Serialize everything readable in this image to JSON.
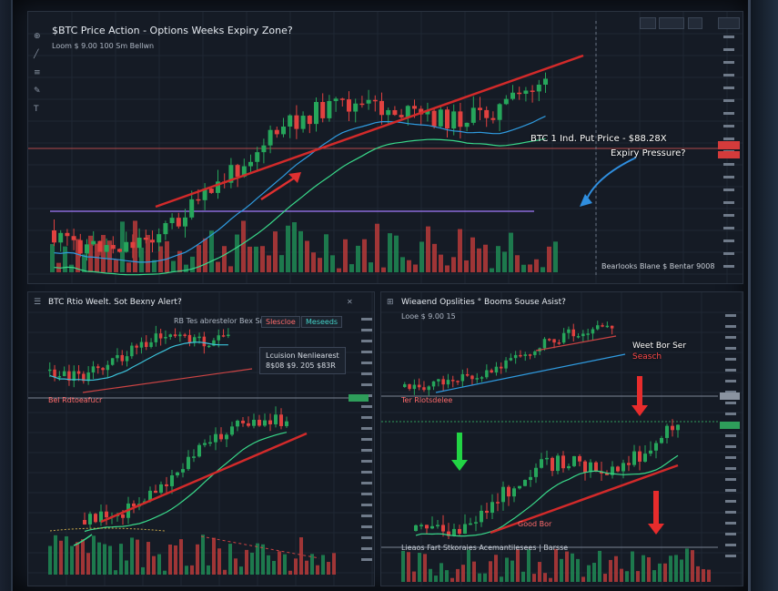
{
  "main_chart": {
    "title": "$BTC Price Action - Options Weeks Expiry Zone?",
    "subtitle": "Loom $ 9.00 100   Sm Bellwn",
    "annotation_line1": "BTC 1 Ind. Put Price - $88.28X",
    "annotation_line2": "Expiry Pressure?",
    "volume_label": "Bearlooks Blane   $ Bentar 9008",
    "toolbar": [
      "",
      "",
      "",
      ""
    ]
  },
  "left_chart": {
    "title": "BTC Rtio Weelt. Sot Bexny Alert?",
    "subtitle": "RB Tes abrestelor Bex Sn",
    "ticker": "Slescloe",
    "ticker2": "Meseeds",
    "info_line1": "Lcuision Nenliearest",
    "info_line2": "8$08 $9. 205 $83R",
    "mid_label": "Bel Rdtoeafucr"
  },
  "right_chart": {
    "title": "Wieaend Opslities ° Booms Souse Asist?",
    "subtitle": "Looe  $ 9.00  15",
    "annot_line1": "Weet Bor Ser",
    "annot_line2": "Seasch",
    "mid_label": "Ter Rlotsdelee",
    "bottom_label": "Good Bor",
    "volume_label": "Lieaos Fart Stkoraies Acemantilesees | Barsse"
  }
}
